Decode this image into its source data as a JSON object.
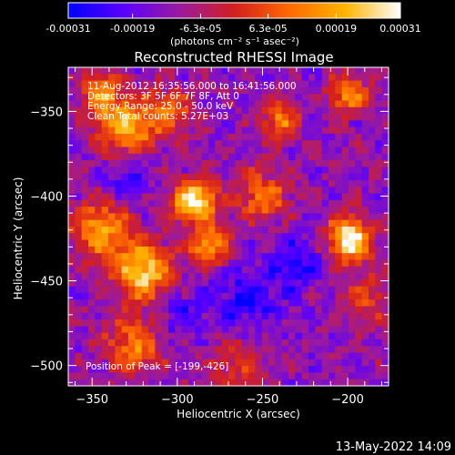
{
  "chart_data": {
    "type": "heatmap",
    "title": "Reconstructed RHESSI Image",
    "xlabel": "Heliocentric X (arcsec)",
    "ylabel": "Heliocentric Y (arcsec)",
    "xlim": [
      -364,
      -176
    ],
    "ylim": [
      -512,
      -324
    ],
    "x_ticks": [
      -350,
      -300,
      -250,
      -200
    ],
    "y_ticks": [
      -350,
      -400,
      -450,
      -500
    ],
    "colorbar": {
      "ticks": [
        "-0.00031",
        "-0.00019",
        "-6.3e-05",
        "6.3e-05",
        "0.00019",
        "0.00031"
      ],
      "tick_values": [
        -0.00031,
        -0.00019,
        -6.3e-05,
        6.3e-05,
        0.00019,
        0.00031
      ],
      "unit_label": "(photons cm⁻² s⁻¹ asec⁻²)",
      "colors": [
        "#0000ff",
        "#5a00ff",
        "#9a1aa0",
        "#d41f1f",
        "#ff6a00",
        "#ffb300",
        "#ffffff"
      ]
    },
    "annotations": [
      "11-Aug-2012 16:35:56.000 to 16:41:56.000",
      "Detectors: 3F 5F 6F 7F 8F, Att 0",
      "Energy Range: 25.0 - 50.0 keV",
      "Clean     Total counts: 5.27E+03"
    ],
    "peak_label": "Position of Peak = [-199,-426]",
    "peak": {
      "x": -199,
      "y": -426
    },
    "sources": [
      {
        "x": -199,
        "y": -426,
        "amp": 1.0,
        "sigma": 9
      },
      {
        "x": -290,
        "y": -403,
        "amp": 0.95,
        "sigma": 9
      },
      {
        "x": -282,
        "y": -430,
        "amp": 0.7,
        "sigma": 8
      },
      {
        "x": -320,
        "y": -445,
        "amp": 0.85,
        "sigma": 12
      },
      {
        "x": -345,
        "y": -420,
        "amp": 0.65,
        "sigma": 12
      },
      {
        "x": -330,
        "y": -360,
        "amp": 0.75,
        "sigma": 11
      },
      {
        "x": -345,
        "y": -340,
        "amp": 0.65,
        "sigma": 8
      },
      {
        "x": -305,
        "y": -350,
        "amp": 0.45,
        "sigma": 10
      },
      {
        "x": -250,
        "y": -400,
        "amp": 0.55,
        "sigma": 10
      },
      {
        "x": -240,
        "y": -355,
        "amp": 0.6,
        "sigma": 7
      },
      {
        "x": -200,
        "y": -340,
        "amp": 0.6,
        "sigma": 8
      },
      {
        "x": -325,
        "y": -488,
        "amp": 0.55,
        "sigma": 12
      },
      {
        "x": -190,
        "y": -460,
        "amp": 0.35,
        "sigma": 10
      },
      {
        "x": -265,
        "y": -500,
        "amp": 0.3,
        "sigma": 12
      },
      {
        "x": -260,
        "y": -460,
        "amp": -0.35,
        "sigma": 12
      },
      {
        "x": -230,
        "y": -440,
        "amp": -0.3,
        "sigma": 12
      },
      {
        "x": -300,
        "y": -470,
        "amp": -0.25,
        "sigma": 12
      },
      {
        "x": -330,
        "y": -390,
        "amp": -0.25,
        "sigma": 10
      }
    ]
  },
  "footer": {
    "timestamp": "13-May-2022 14:09"
  }
}
